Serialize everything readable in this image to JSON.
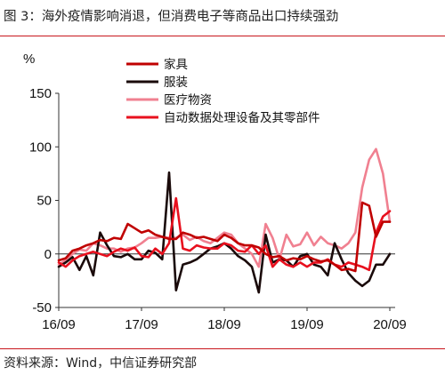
{
  "figure_title": "图 3：海外疫情影响消退，但消费电子等商品出口持续强劲",
  "source_note": "资料来源：Wind，中信证券研究部",
  "chart_data": {
    "type": "line",
    "title": "",
    "ylabel": "%",
    "ylim": [
      -50,
      150
    ],
    "yticks": [
      -50,
      0,
      50,
      100,
      150
    ],
    "xlim": [
      "2016-09",
      "2020-09"
    ],
    "xticks": [
      "16/09",
      "17/09",
      "18/09",
      "19/09",
      "20/09"
    ],
    "grid": false,
    "legend_position": "top-center",
    "x": [
      "2016-09",
      "2016-10",
      "2016-11",
      "2016-12",
      "2017-01",
      "2017-02",
      "2017-03",
      "2017-04",
      "2017-05",
      "2017-06",
      "2017-07",
      "2017-08",
      "2017-09",
      "2017-10",
      "2017-11",
      "2017-12",
      "2018-01",
      "2018-02",
      "2018-03",
      "2018-04",
      "2018-05",
      "2018-06",
      "2018-07",
      "2018-08",
      "2018-09",
      "2018-10",
      "2018-11",
      "2018-12",
      "2019-01",
      "2019-02",
      "2019-03",
      "2019-04",
      "2019-05",
      "2019-06",
      "2019-07",
      "2019-08",
      "2019-09",
      "2019-10",
      "2019-11",
      "2019-12",
      "2020-01",
      "2020-02",
      "2020-03",
      "2020-04",
      "2020-05",
      "2020-06",
      "2020-07",
      "2020-08",
      "2020-09"
    ],
    "series": [
      {
        "name": "家具",
        "color": "#c00000",
        "values": [
          -6,
          -4,
          3,
          5,
          8,
          10,
          13,
          12,
          15,
          14,
          28,
          24,
          20,
          22,
          18,
          16,
          14,
          14,
          20,
          18,
          15,
          16,
          14,
          12,
          18,
          15,
          10,
          8,
          8,
          6,
          0,
          -3,
          -2,
          -6,
          -4,
          -5,
          -2,
          -5,
          -7,
          -6,
          -10,
          -15,
          -14,
          -16,
          48,
          45,
          16,
          30,
          30
        ]
      },
      {
        "name": "服装",
        "color": "#1a0a0a",
        "values": [
          -12,
          -8,
          -3,
          -15,
          -2,
          -20,
          20,
          8,
          -2,
          -3,
          0,
          -5,
          -5,
          3,
          1,
          -5,
          76,
          -34,
          -10,
          -8,
          -5,
          0,
          5,
          7,
          10,
          5,
          -2,
          -6,
          -12,
          -36,
          18,
          -8,
          -5,
          -6,
          -12,
          -2,
          0,
          -10,
          -12,
          -20,
          10,
          -5,
          -18,
          -25,
          -30,
          -25,
          -10,
          -10,
          0
        ]
      },
      {
        "name": "医疗物资",
        "color": "#f08090",
        "values": [
          -10,
          -6,
          0,
          4,
          3,
          10,
          8,
          5,
          5,
          2,
          5,
          6,
          10,
          15,
          15,
          16,
          15,
          15,
          18,
          13,
          16,
          12,
          10,
          15,
          20,
          18,
          10,
          5,
          0,
          -12,
          28,
          15,
          -5,
          18,
          7,
          9,
          20,
          8,
          16,
          10,
          8,
          5,
          10,
          20,
          62,
          88,
          98,
          75,
          30
        ]
      },
      {
        "name": "自动数据处理设备及其零部件",
        "color": "#e8101e",
        "values": [
          -8,
          -12,
          -6,
          -2,
          0,
          2,
          0,
          -2,
          2,
          5,
          3,
          6,
          -2,
          -3,
          5,
          0,
          10,
          52,
          5,
          3,
          8,
          6,
          5,
          5,
          10,
          8,
          3,
          2,
          8,
          0,
          8,
          -12,
          -5,
          -10,
          -12,
          -8,
          -12,
          -8,
          -8,
          -5,
          -10,
          -12,
          -8,
          -10,
          -12,
          -15,
          20,
          35,
          40
        ]
      }
    ]
  }
}
